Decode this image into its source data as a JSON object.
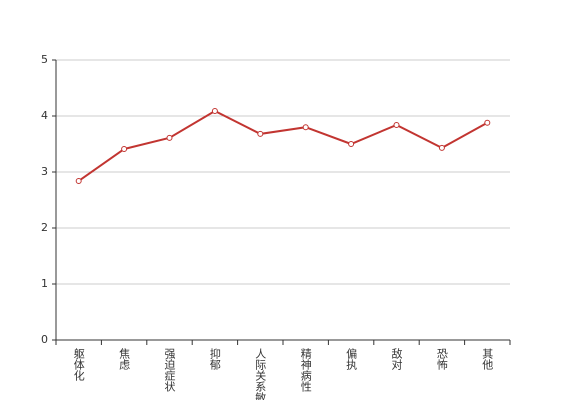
{
  "chart_data": {
    "type": "line",
    "categories": [
      "躯体化",
      "焦虑",
      "强迫症状",
      "抑郁",
      "人际关系敏感",
      "精神病性",
      "偏执",
      "敌对",
      "恐怖",
      "其他"
    ],
    "values": [
      2.84,
      3.41,
      3.61,
      4.09,
      3.68,
      3.8,
      3.5,
      3.84,
      3.43,
      3.88
    ],
    "color": "#c23531",
    "ylim": [
      0,
      5
    ],
    "yticks": [
      0,
      1,
      2,
      3,
      4,
      5
    ],
    "grid": true
  }
}
